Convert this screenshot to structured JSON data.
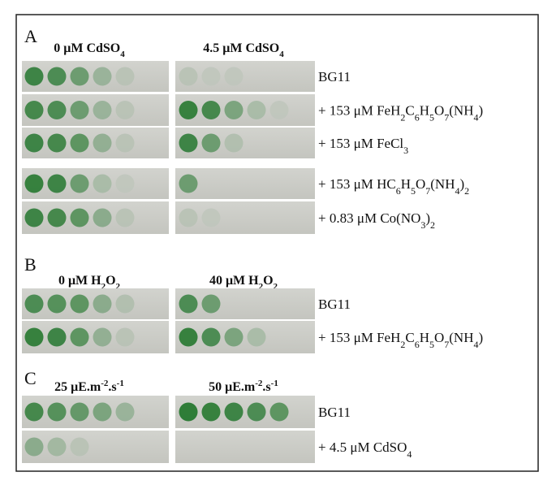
{
  "panels": [
    {
      "letter": "A",
      "columns": [
        [
          {
            "text": "0 μM CdSO"
          },
          {
            "sub": "4"
          }
        ],
        [
          {
            "text": "4.5 μM CdSO"
          },
          {
            "sub": "4"
          }
        ]
      ],
      "rows": [
        [
          {
            "text": "BG11"
          }
        ],
        [
          {
            "text": "+ 153 μM FeH"
          },
          {
            "sub": "2"
          },
          {
            "text": "C"
          },
          {
            "sub": "6"
          },
          {
            "text": "H"
          },
          {
            "sub": "5"
          },
          {
            "text": "O"
          },
          {
            "sub": "7"
          },
          {
            "text": "(NH"
          },
          {
            "sub": "4"
          },
          {
            "text": ")"
          }
        ],
        [
          {
            "text": "+ 153 μM FeCl"
          },
          {
            "sub": "3"
          }
        ],
        [
          {
            "text": "+ 153 μM HC"
          },
          {
            "sub": "6"
          },
          {
            "text": "H"
          },
          {
            "sub": "5"
          },
          {
            "text": "O"
          },
          {
            "sub": "7"
          },
          {
            "text": "(NH"
          },
          {
            "sub": "4"
          },
          {
            "text": ")"
          },
          {
            "sub": "2"
          }
        ],
        [
          {
            "text": "+ 0.83 μM Co(NO"
          },
          {
            "sub": "3"
          },
          {
            "text": ")"
          },
          {
            "sub": "2"
          }
        ]
      ]
    },
    {
      "letter": "B",
      "columns": [
        [
          {
            "text": "0 μM H"
          },
          {
            "sub": "2"
          },
          {
            "text": "O"
          },
          {
            "sub": "2"
          }
        ],
        [
          {
            "text": "40 μM H"
          },
          {
            "sub": "2"
          },
          {
            "text": "O"
          },
          {
            "sub": "2"
          }
        ]
      ],
      "rows": [
        [
          {
            "text": "BG11"
          }
        ],
        [
          {
            "text": "+ 153 μM FeH"
          },
          {
            "sub": "2"
          },
          {
            "text": "C"
          },
          {
            "sub": "6"
          },
          {
            "text": "H"
          },
          {
            "sub": "5"
          },
          {
            "text": "O"
          },
          {
            "sub": "7"
          },
          {
            "text": "(NH"
          },
          {
            "sub": "4"
          },
          {
            "text": ")"
          }
        ]
      ]
    },
    {
      "letter": "C",
      "columns": [
        [
          {
            "text": "25 μE.m"
          },
          {
            "sup": "-2"
          },
          {
            "text": ".s"
          },
          {
            "sup": "-1"
          }
        ],
        [
          {
            "text": "50 μE.m"
          },
          {
            "sup": "-2"
          },
          {
            "text": ".s"
          },
          {
            "sup": "-1"
          }
        ]
      ],
      "rows": [
        [
          {
            "text": "BG11"
          }
        ],
        [
          {
            "text": "+ 4.5 μM CdSO"
          },
          {
            "sub": "4"
          }
        ]
      ]
    }
  ]
}
